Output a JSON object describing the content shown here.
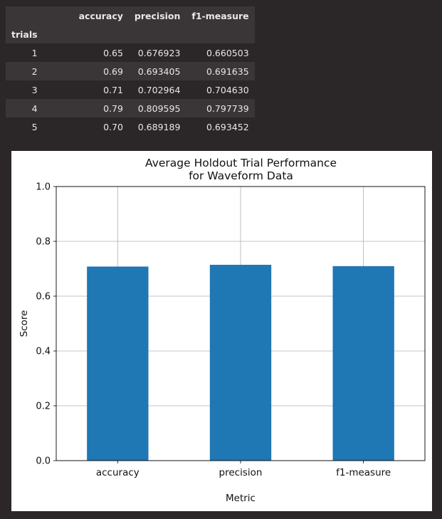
{
  "table": {
    "columns": [
      "accuracy",
      "precision",
      "f1-measure"
    ],
    "index_name": "trials",
    "rows": [
      {
        "trial": "1",
        "accuracy": "0.65",
        "precision": "0.676923",
        "f1": "0.660503"
      },
      {
        "trial": "2",
        "accuracy": "0.69",
        "precision": "0.693405",
        "f1": "0.691635"
      },
      {
        "trial": "3",
        "accuracy": "0.71",
        "precision": "0.702964",
        "f1": "0.704630"
      },
      {
        "trial": "4",
        "accuracy": "0.79",
        "precision": "0.809595",
        "f1": "0.797739"
      },
      {
        "trial": "5",
        "accuracy": "0.70",
        "precision": "0.689189",
        "f1": "0.693452"
      }
    ]
  },
  "chart_data": {
    "type": "bar",
    "title_line1": "Average Holdout Trial Performance",
    "title_line2": "for Waveform Data",
    "categories": [
      "accuracy",
      "precision",
      "f1-measure"
    ],
    "values": [
      0.708,
      0.714415,
      0.709592
    ],
    "xlabel": "Metric",
    "ylabel": "Score",
    "ylim": [
      0.0,
      1.0
    ],
    "yticks": [
      "0.0",
      "0.2",
      "0.4",
      "0.6",
      "0.8",
      "1.0"
    ],
    "grid": true,
    "bar_color": "#1f77b4"
  }
}
